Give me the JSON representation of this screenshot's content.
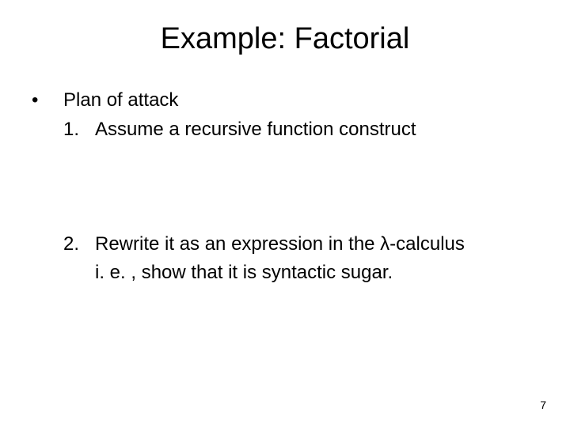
{
  "slide": {
    "title": "Example: Factorial",
    "bullet": {
      "marker": "•",
      "text": "Plan of attack"
    },
    "items": [
      {
        "marker": "1.",
        "text": "Assume a recursive function construct"
      },
      {
        "marker": "2.",
        "text": "Rewrite it as an expression in the λ-calculus",
        "subtext": "i. e. , show that it is syntactic sugar."
      }
    ],
    "page_number": "7"
  },
  "style": {
    "background_color": "#ffffff",
    "text_color": "#000000",
    "title_fontsize": 38,
    "body_fontsize": 24,
    "pagenum_fontsize": 14,
    "font_family": "Arial"
  }
}
